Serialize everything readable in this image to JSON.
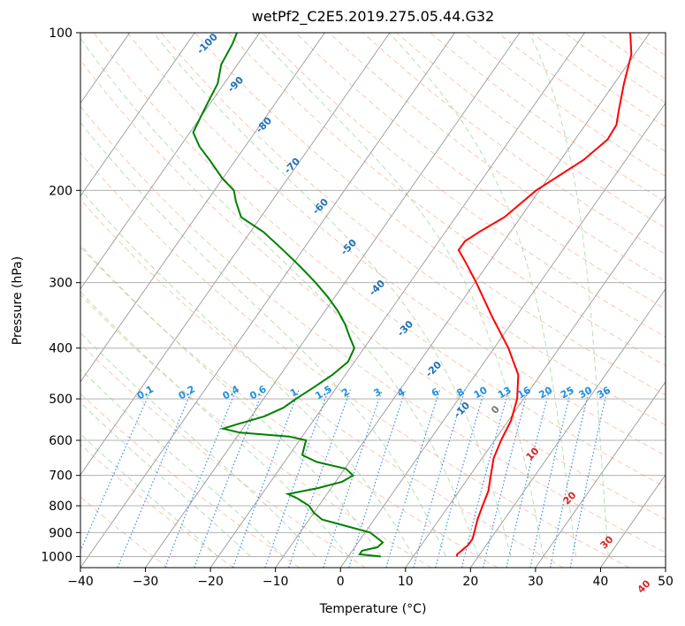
{
  "chart_data": {
    "type": "line",
    "title": "wetPf2_C2E5.2019.275.05.44.G32",
    "xlabel": "Temperature (°C)",
    "ylabel": "Pressure (hPa)",
    "xlim": [
      -40,
      50
    ],
    "ylim": [
      1050,
      100
    ],
    "y_scale": "log",
    "grid": true,
    "x_ticks": [
      -40,
      -30,
      -20,
      -10,
      0,
      10,
      20,
      30,
      40,
      50
    ],
    "y_ticks": [
      100,
      200,
      300,
      400,
      500,
      600,
      700,
      800,
      900,
      1000
    ],
    "background_lines": {
      "isotherms_skewed": true,
      "dry_adiabats": {
        "color": "#f4a582",
        "style": "dashed"
      },
      "moist_adiabats": {
        "color": "#9fd49f",
        "style": "dashed"
      },
      "mixing_ratio": {
        "color": "#1f77e0",
        "style": "dotted"
      }
    },
    "moist_adiabat_labels": [
      -100,
      -90,
      -80,
      -70,
      -60,
      -50,
      -40,
      -30,
      -20,
      -10
    ],
    "mixing_ratio_labels": [
      "0.1",
      "0.2",
      "0.4",
      "0.6",
      "1",
      "1.5",
      "2",
      "3",
      "4",
      "6",
      "8",
      "10",
      "13",
      "16",
      "20",
      "25",
      "30",
      "36"
    ],
    "dry_adiabat_labels": [
      "0",
      "10",
      "20",
      "30",
      "40"
    ],
    "series": [
      {
        "color": "#ff0000",
        "points": [
          {
            "p": 1000,
            "t": 16.7
          },
          {
            "p": 990,
            "t": 16.5
          },
          {
            "p": 975,
            "t": 16.8
          },
          {
            "p": 950,
            "t": 17.2
          },
          {
            "p": 925,
            "t": 17.2
          },
          {
            "p": 900,
            "t": 16.8
          },
          {
            "p": 850,
            "t": 15.9
          },
          {
            "p": 800,
            "t": 15.2
          },
          {
            "p": 750,
            "t": 14.5
          },
          {
            "p": 700,
            "t": 13.2
          },
          {
            "p": 650,
            "t": 11.8
          },
          {
            "p": 600,
            "t": 11.0
          },
          {
            "p": 550,
            "t": 10.4
          },
          {
            "p": 500,
            "t": 9.0
          },
          {
            "p": 450,
            "t": 6.6
          },
          {
            "p": 400,
            "t": 2.2
          },
          {
            "p": 350,
            "t": -3.5
          },
          {
            "p": 300,
            "t": -9.8
          },
          {
            "p": 275,
            "t": -13.5
          },
          {
            "p": 260,
            "t": -16.0
          },
          {
            "p": 250,
            "t": -16.0
          },
          {
            "p": 240,
            "t": -14.8
          },
          {
            "p": 225,
            "t": -12.5
          },
          {
            "p": 200,
            "t": -10.5
          },
          {
            "p": 175,
            "t": -6.5
          },
          {
            "p": 160,
            "t": -5.0
          },
          {
            "p": 150,
            "t": -5.2
          },
          {
            "p": 140,
            "t": -6.5
          },
          {
            "p": 125,
            "t": -8.5
          },
          {
            "p": 110,
            "t": -10.5
          },
          {
            "p": 100,
            "t": -13.0
          }
        ]
      },
      {
        "color": "#008000",
        "points": [
          {
            "p": 1000,
            "t": 5.0
          },
          {
            "p": 990,
            "t": 1.5
          },
          {
            "p": 975,
            "t": 1.5
          },
          {
            "p": 960,
            "t": 3.5
          },
          {
            "p": 940,
            "t": 3.8
          },
          {
            "p": 900,
            "t": 0.8
          },
          {
            "p": 875,
            "t": -3.5
          },
          {
            "p": 850,
            "t": -8.0
          },
          {
            "p": 825,
            "t": -10.0
          },
          {
            "p": 800,
            "t": -11.5
          },
          {
            "p": 775,
            "t": -14.0
          },
          {
            "p": 760,
            "t": -16.0
          },
          {
            "p": 740,
            "t": -12.0
          },
          {
            "p": 720,
            "t": -9.0
          },
          {
            "p": 700,
            "t": -8.0
          },
          {
            "p": 680,
            "t": -9.8
          },
          {
            "p": 660,
            "t": -15.0
          },
          {
            "p": 640,
            "t": -18.0
          },
          {
            "p": 620,
            "t": -18.5
          },
          {
            "p": 600,
            "t": -19.0
          },
          {
            "p": 590,
            "t": -22.0
          },
          {
            "p": 580,
            "t": -30.0
          },
          {
            "p": 570,
            "t": -33.0
          },
          {
            "p": 560,
            "t": -31.5
          },
          {
            "p": 540,
            "t": -28.0
          },
          {
            "p": 520,
            "t": -26.0
          },
          {
            "p": 500,
            "t": -25.0
          },
          {
            "p": 475,
            "t": -23.5
          },
          {
            "p": 450,
            "t": -22.0
          },
          {
            "p": 425,
            "t": -21.0
          },
          {
            "p": 400,
            "t": -21.5
          },
          {
            "p": 380,
            "t": -23.5
          },
          {
            "p": 360,
            "t": -25.5
          },
          {
            "p": 340,
            "t": -28.0
          },
          {
            "p": 320,
            "t": -31.0
          },
          {
            "p": 300,
            "t": -34.5
          },
          {
            "p": 280,
            "t": -38.5
          },
          {
            "p": 260,
            "t": -43.0
          },
          {
            "p": 240,
            "t": -48.0
          },
          {
            "p": 225,
            "t": -53.0
          },
          {
            "p": 210,
            "t": -55.5
          },
          {
            "p": 200,
            "t": -57.0
          },
          {
            "p": 190,
            "t": -60.0
          },
          {
            "p": 175,
            "t": -64.0
          },
          {
            "p": 165,
            "t": -67.0
          },
          {
            "p": 155,
            "t": -69.5
          },
          {
            "p": 145,
            "t": -70.0
          },
          {
            "p": 135,
            "t": -70.5
          },
          {
            "p": 125,
            "t": -71.0
          },
          {
            "p": 115,
            "t": -72.5
          },
          {
            "p": 105,
            "t": -73.0
          },
          {
            "p": 100,
            "t": -73.5
          }
        ]
      }
    ]
  }
}
